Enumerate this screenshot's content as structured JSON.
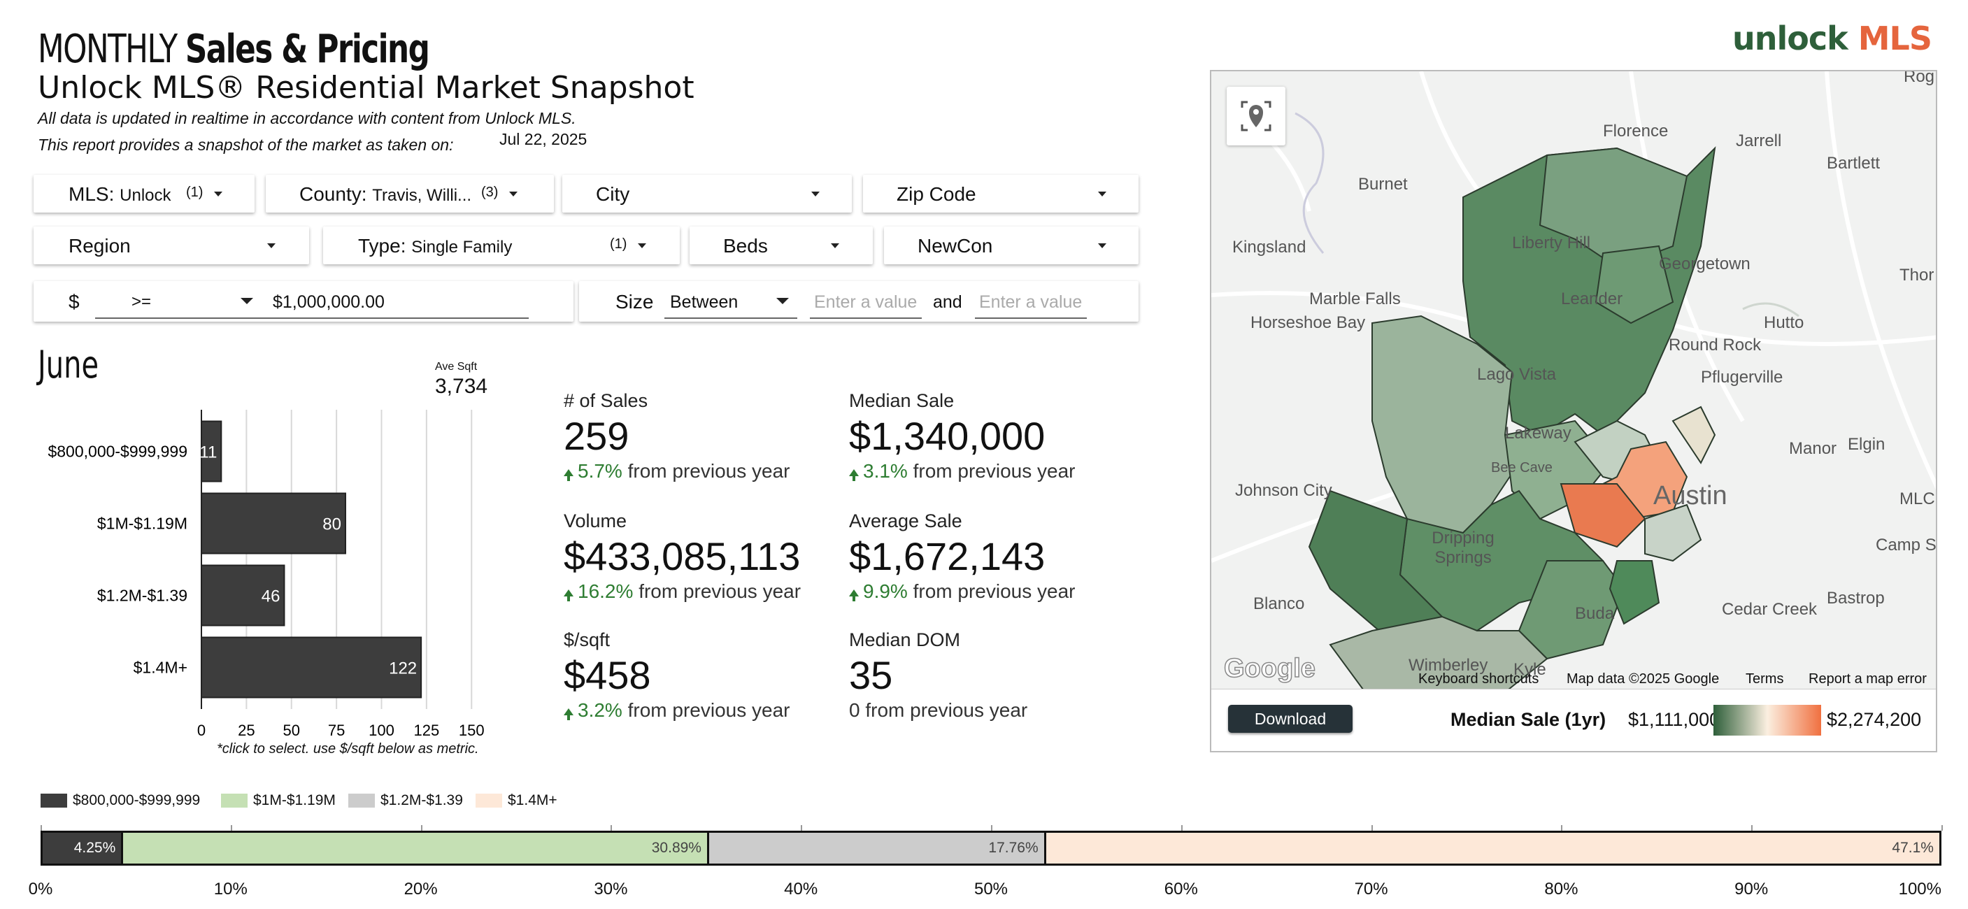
{
  "header": {
    "title_light": "MONTHLY",
    "title_bold": "Sales & Pricing",
    "subtitle": "Unlock MLS®  Residential Market Snapshot",
    "note1": "All data is updated in realtime in accordance with content from Unlock MLS.",
    "note2": "This report provides a snapshot of the market as taken on:",
    "date": "Jul 22, 2025",
    "logo_a": "unlock",
    "logo_b": "MLS"
  },
  "filters": {
    "mls": {
      "label": "MLS:",
      "value": "Unlock",
      "count": "(1)"
    },
    "county": {
      "label": "County:",
      "value": "Travis, Willi...",
      "count": "(3)"
    },
    "city": {
      "label": "City"
    },
    "zip": {
      "label": "Zip Code"
    },
    "region": {
      "label": "Region"
    },
    "type": {
      "label": "Type:",
      "value": "Single Family",
      "count": "(1)"
    },
    "beds": {
      "label": "Beds"
    },
    "newcon": {
      "label": "NewCon"
    },
    "price": {
      "label": "$",
      "operator": ">=",
      "value": "$1,000,000.00"
    },
    "size": {
      "label": "Size",
      "operator": "Between",
      "min_placeholder": "Enter a value",
      "and": "and",
      "max_placeholder": "Enter a value"
    }
  },
  "bar_section": {
    "month": "June",
    "avg_label": "Ave Sqft",
    "avg_value": "3,734",
    "note": "*click to select.  use $/sqft below as metric."
  },
  "chart_data": {
    "type": "bar",
    "orientation": "horizontal",
    "categories": [
      "$800,000-$999,999",
      "$1M-$1.19M",
      "$1.2M-$1.39",
      "$1.4M+"
    ],
    "values": [
      11,
      80,
      46,
      122
    ],
    "xlim": [
      0,
      160
    ],
    "xticks": [
      0,
      25,
      50,
      75,
      100,
      125,
      150
    ],
    "color": "#3d3d3d",
    "grid": true
  },
  "kpis": [
    {
      "title": "# of Sales",
      "value": "259",
      "change": "5.7%",
      "suffix": "from previous year",
      "up": true
    },
    {
      "title": "Median Sale",
      "value": "$1,340,000",
      "change": "3.1%",
      "suffix": "from previous year",
      "up": true
    },
    {
      "title": "Volume",
      "value": "$433,085,113",
      "change": "16.2%",
      "suffix": "from previous year",
      "up": true
    },
    {
      "title": "Average Sale",
      "value": "$1,672,143",
      "change": "9.9%",
      "suffix": "from previous year",
      "up": true
    },
    {
      "title": "$/sqft",
      "value": "$458",
      "change": "3.2%",
      "suffix": "from previous year",
      "up": true
    },
    {
      "title": "Median DOM",
      "value": "35",
      "change": "0",
      "suffix": "from previous year",
      "up": false
    }
  ],
  "map": {
    "places": [
      "Florence",
      "Jarrell",
      "Bartlett",
      "Burnet",
      "Kingsland",
      "Liberty Hill",
      "Georgetown",
      "Thor",
      "Leander",
      "Marble Falls",
      "Horseshoe Bay",
      "Hutto",
      "Round Rock",
      "Lago Vista",
      "Pflugerville",
      "Lakeway",
      "Manor",
      "Elgin",
      "Johnson City",
      "Austin",
      "MLC",
      "Camp Swif",
      "Dripping Springs",
      "Bastrop",
      "Blanco",
      "Buda",
      "Cedar Creek",
      "Wimberley",
      "Kyle",
      "Rog",
      "Bee Cave"
    ],
    "attribution": {
      "shortcuts": "Keyboard shortcuts",
      "data": "Map data ©2025 Google",
      "terms": "Terms",
      "report": "Report a map error"
    },
    "google": "Google",
    "download": "Download",
    "legend_title": "Median Sale (1yr)",
    "legend_min": "$1,111,000",
    "legend_max": "$2,274,200",
    "legend_colors": [
      "#2e5f3a",
      "#fbefe0",
      "#f07040"
    ]
  },
  "share": {
    "legend": [
      {
        "label": "$800,000-$999,999",
        "color": "#3d3d3d"
      },
      {
        "label": "$1M-$1.19M",
        "color": "#c5e0b4"
      },
      {
        "label": "$1.2M-$1.39",
        "color": "#cccccc"
      },
      {
        "label": "$1.4M+",
        "color": "#fde8d8"
      }
    ],
    "segments": [
      {
        "label": "4.25%",
        "value": 4.25,
        "color": "#3d3d3d"
      },
      {
        "label": "30.89%",
        "value": 30.89,
        "color": "#c5e0b4"
      },
      {
        "label": "17.76%",
        "value": 17.76,
        "color": "#cccccc"
      },
      {
        "label": "47.1%",
        "value": 47.1,
        "color": "#fde8d8"
      }
    ],
    "ticks": [
      "0%",
      "10%",
      "20%",
      "30%",
      "40%",
      "50%",
      "60%",
      "70%",
      "80%",
      "90%",
      "100%"
    ]
  }
}
